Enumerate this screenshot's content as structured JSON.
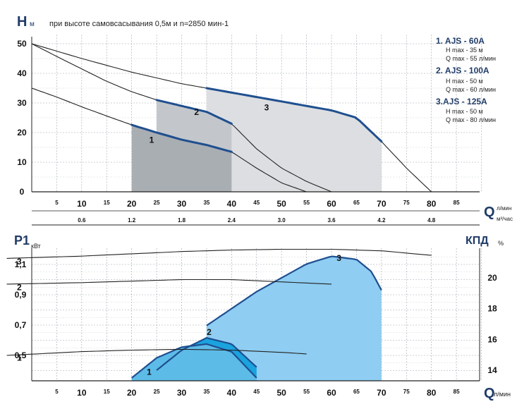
{
  "chart_data": [
    {
      "type": "line",
      "ylabel": "H",
      "ylabel_unit": "м",
      "subtitle": "при высоте самовсасывания 0,5м и n≈2850 мин-1",
      "xlabel": "Q",
      "xlabel_unit_top": "л/мин",
      "xlabel_unit_bottom": "м³/час",
      "xlim": [
        0,
        90
      ],
      "ylim": [
        0,
        53
      ],
      "x_ticks_major": [
        "10",
        "20",
        "30",
        "40",
        "50",
        "60",
        "70",
        "80"
      ],
      "x_ticks_minor": [
        "5",
        "15",
        "25",
        "35",
        "45",
        "55",
        "65",
        "75",
        "85"
      ],
      "x_ticks_m3h": [
        "0.6",
        "1.2",
        "1.8",
        "2.4",
        "3.0",
        "3.6",
        "4.2",
        "4.8"
      ],
      "y_ticks": [
        "0",
        "10",
        "20",
        "30",
        "40",
        "50"
      ],
      "legend": [
        {
          "title": "1. AJS - 60A",
          "line1": "H max - 35 м",
          "line2": "Q max - 55 л/мин"
        },
        {
          "title": "2. AJS - 100A",
          "line1": "H max - 50 м",
          "line2": "Q max - 60 л/мин"
        },
        {
          "title": "3.AJS - 125A",
          "line1": "H max - 50 м",
          "line2": "Q max - 80 л/мин"
        }
      ],
      "series": [
        {
          "label": "1",
          "x": [
            0,
            5,
            10,
            15,
            20,
            25,
            30,
            35,
            40,
            45,
            50,
            55
          ],
          "y": [
            35,
            32,
            28.7,
            25.6,
            22.6,
            20,
            17.6,
            15.8,
            13.5,
            8,
            3,
            0
          ],
          "working_range": [
            20,
            40
          ],
          "color": "#1f4f8f"
        },
        {
          "label": "2",
          "x": [
            0,
            5,
            10,
            15,
            20,
            25,
            30,
            35,
            40,
            45,
            50,
            55,
            60
          ],
          "y": [
            50,
            45.7,
            41.5,
            37.3,
            33.8,
            31,
            29,
            27,
            23,
            14.5,
            8,
            3.5,
            0
          ],
          "working_range": [
            25,
            40
          ],
          "color": "#1f4f8f"
        },
        {
          "label": "3",
          "x": [
            0,
            10,
            20,
            30,
            40,
            50,
            60,
            65,
            70,
            75,
            80
          ],
          "y": [
            50,
            45,
            40.4,
            36.5,
            33.5,
            30.5,
            27.5,
            25,
            17,
            8,
            0
          ],
          "working_range": [
            35,
            70
          ],
          "color": "#1f4f8f"
        }
      ]
    },
    {
      "type": "line",
      "ylabel": "P1",
      "ylabel_unit": "кВт",
      "y2label": "КПД",
      "y2label_unit": "%",
      "xlabel": "Q",
      "xlabel_unit": "л/мин",
      "xlim": [
        0,
        90
      ],
      "ylim": [
        0.35,
        1.2
      ],
      "y2lim": [
        13.2,
        21.7
      ],
      "x_ticks_major": [
        "10",
        "20",
        "30",
        "40",
        "50",
        "60",
        "70",
        "80"
      ],
      "x_ticks_minor": [
        "5",
        "15",
        "25",
        "35",
        "45",
        "55",
        "65",
        "75",
        "85"
      ],
      "y_ticks": [
        "0,5",
        "0,7",
        "0,9",
        "1,1"
      ],
      "y2_ticks": [
        "14",
        "16",
        "18",
        "20"
      ],
      "power_series": [
        {
          "label": "1",
          "x": [
            -5,
            10,
            20,
            30,
            40,
            50,
            55
          ],
          "y": [
            0.5,
            0.525,
            0.535,
            0.54,
            0.535,
            0.52,
            0.51
          ]
        },
        {
          "label": "2",
          "x": [
            -5,
            10,
            20,
            30,
            40,
            50,
            60
          ],
          "y": [
            0.97,
            0.98,
            0.99,
            1.0,
            1.0,
            0.985,
            0.97
          ]
        },
        {
          "label": "3",
          "x": [
            -5,
            10,
            20,
            30,
            40,
            50,
            60,
            70,
            80
          ],
          "y": [
            1.14,
            1.155,
            1.17,
            1.185,
            1.195,
            1.2,
            1.2,
            1.19,
            1.16
          ]
        }
      ],
      "efficiency_series": [
        {
          "label": "1",
          "x": [
            20,
            25,
            30,
            35,
            40,
            45
          ],
          "y": [
            13.5,
            14.8,
            15.5,
            15.7,
            15.2,
            13.5
          ]
        },
        {
          "label": "2",
          "x": [
            25,
            30,
            35,
            40,
            45
          ],
          "y": [
            14,
            15.3,
            16.1,
            15.7,
            14.2
          ]
        },
        {
          "label": "3",
          "x": [
            35,
            45,
            55,
            60,
            65,
            68,
            70
          ],
          "y": [
            16.9,
            19.1,
            20.9,
            21.4,
            21.2,
            20.4,
            19.2
          ]
        }
      ]
    }
  ]
}
